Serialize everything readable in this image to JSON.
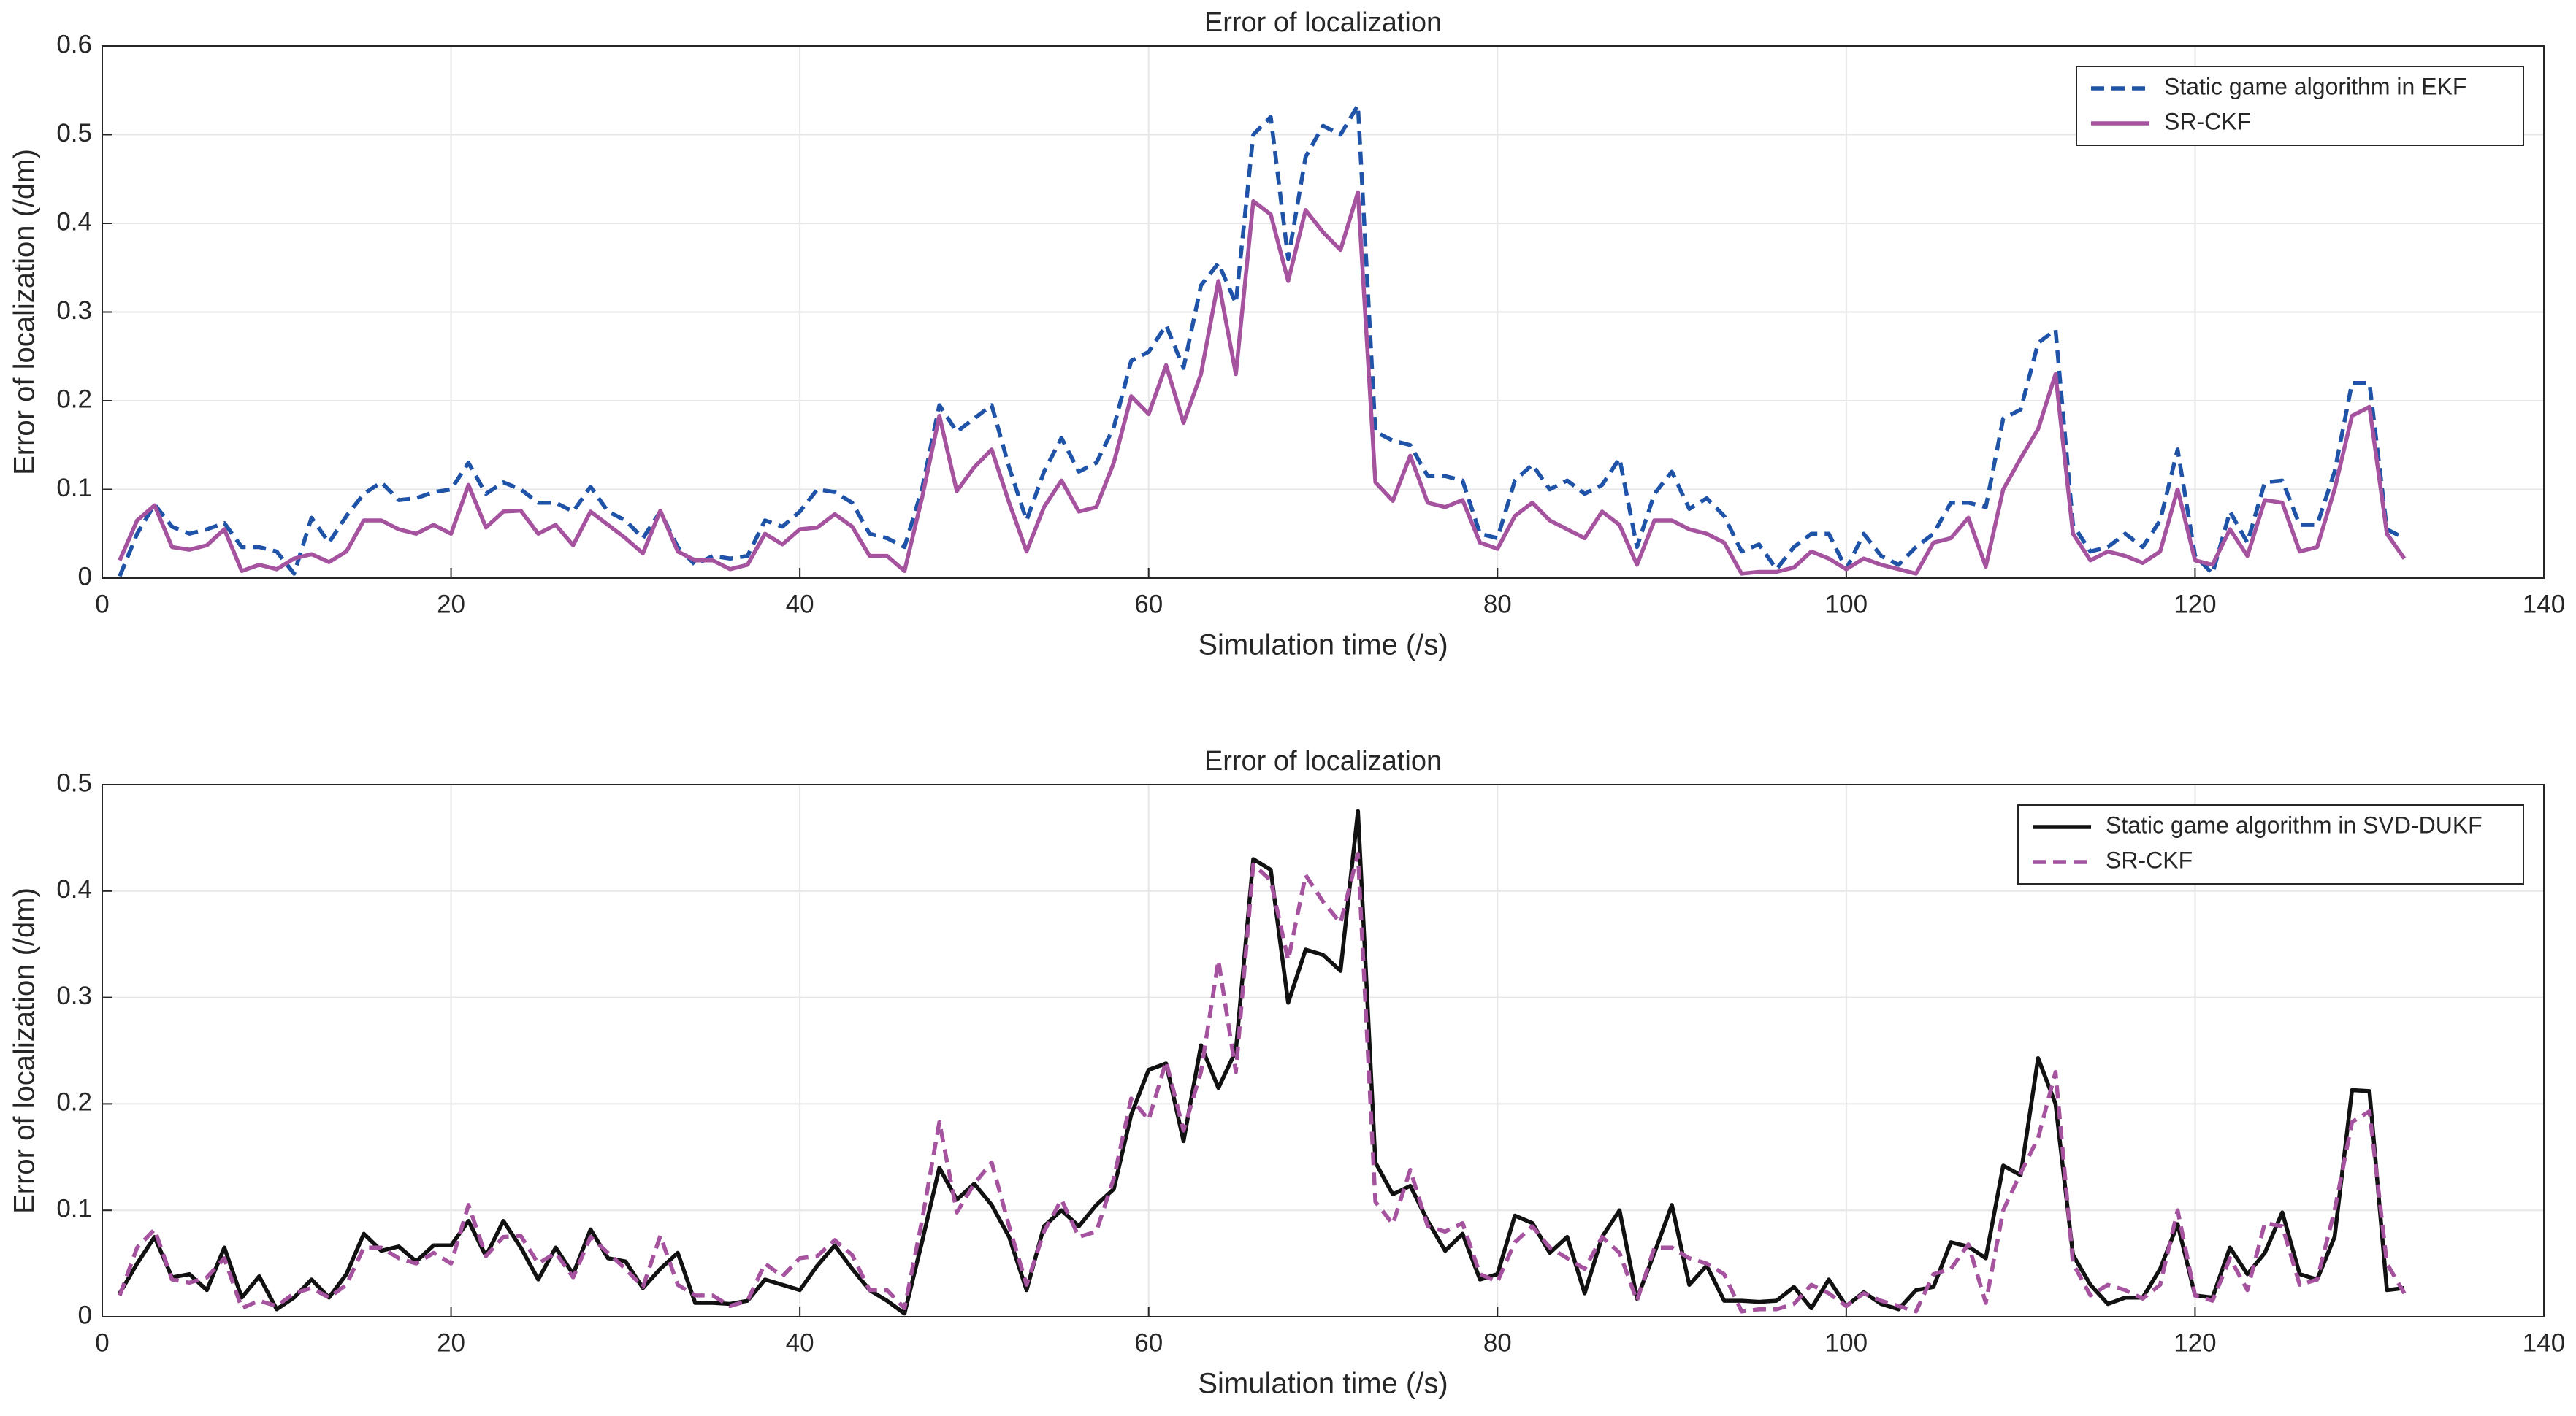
{
  "chart_data": [
    {
      "type": "line",
      "title": "Error of localization",
      "x_label": "Simulation time (/s)",
      "y_label": "Error of localization (/dm)",
      "xlim": [
        0,
        140
      ],
      "ylim": [
        0,
        0.6
      ],
      "xticks": [
        0,
        20,
        40,
        60,
        80,
        100,
        120,
        140
      ],
      "yticks": [
        0,
        0.1,
        0.2,
        0.3,
        0.4,
        0.5,
        0.6
      ],
      "grid": true,
      "legend": "upper-right",
      "x": [
        1,
        2,
        3,
        4,
        5,
        6,
        7,
        8,
        9,
        10,
        11,
        12,
        13,
        14,
        15,
        16,
        17,
        18,
        19,
        20,
        21,
        22,
        23,
        24,
        25,
        26,
        27,
        28,
        29,
        30,
        31,
        32,
        33,
        34,
        35,
        36,
        37,
        38,
        39,
        40,
        41,
        42,
        43,
        44,
        45,
        46,
        47,
        48,
        49,
        50,
        51,
        52,
        53,
        54,
        55,
        56,
        57,
        58,
        59,
        60,
        61,
        62,
        63,
        64,
        65,
        66,
        67,
        68,
        69,
        70,
        71,
        72,
        73,
        74,
        75,
        76,
        77,
        78,
        79,
        80,
        81,
        82,
        83,
        84,
        85,
        86,
        87,
        88,
        89,
        90,
        91,
        92,
        93,
        94,
        95,
        96,
        97,
        98,
        99,
        100,
        101,
        102,
        103,
        104,
        105,
        106,
        107,
        108,
        109,
        110,
        111,
        112,
        113,
        114,
        115,
        116,
        117,
        118,
        119,
        120,
        121,
        122,
        123,
        124,
        125,
        126,
        127,
        128,
        129,
        130,
        131,
        132
      ],
      "series": [
        {
          "name": "Static game algorithm in EKF",
          "color": "#1f53a8",
          "style": "dashed",
          "values": [
            0.002,
            0.05,
            0.083,
            0.058,
            0.05,
            0.055,
            0.062,
            0.035,
            0.035,
            0.03,
            0.005,
            0.068,
            0.04,
            0.07,
            0.095,
            0.108,
            0.088,
            0.09,
            0.097,
            0.1,
            0.13,
            0.095,
            0.108,
            0.1,
            0.085,
            0.085,
            0.075,
            0.103,
            0.075,
            0.065,
            0.045,
            0.075,
            0.035,
            0.015,
            0.025,
            0.022,
            0.025,
            0.065,
            0.058,
            0.075,
            0.1,
            0.097,
            0.085,
            0.05,
            0.045,
            0.035,
            0.1,
            0.195,
            0.165,
            0.18,
            0.195,
            0.125,
            0.065,
            0.12,
            0.158,
            0.12,
            0.13,
            0.17,
            0.245,
            0.255,
            0.285,
            0.237,
            0.33,
            0.355,
            0.31,
            0.5,
            0.52,
            0.36,
            0.475,
            0.51,
            0.5,
            0.533,
            0.165,
            0.155,
            0.15,
            0.115,
            0.115,
            0.11,
            0.05,
            0.045,
            0.11,
            0.128,
            0.1,
            0.11,
            0.095,
            0.105,
            0.135,
            0.035,
            0.095,
            0.12,
            0.078,
            0.09,
            0.07,
            0.03,
            0.038,
            0.01,
            0.035,
            0.05,
            0.05,
            0.01,
            0.05,
            0.025,
            0.015,
            0.035,
            0.05,
            0.085,
            0.085,
            0.08,
            0.18,
            0.19,
            0.265,
            0.28,
            0.06,
            0.03,
            0.035,
            0.05,
            0.035,
            0.065,
            0.145,
            0.025,
            0.005,
            0.075,
            0.04,
            0.108,
            0.11,
            0.06,
            0.06,
            0.12,
            0.22,
            0.22,
            0.055,
            0.045
          ]
        },
        {
          "name": "SR-CKF",
          "color": "#a5529f",
          "style": "solid",
          "values": [
            0.02,
            0.065,
            0.082,
            0.035,
            0.032,
            0.037,
            0.055,
            0.008,
            0.015,
            0.01,
            0.022,
            0.027,
            0.018,
            0.03,
            0.065,
            0.065,
            0.055,
            0.05,
            0.06,
            0.05,
            0.105,
            0.057,
            0.075,
            0.076,
            0.05,
            0.06,
            0.037,
            0.075,
            0.06,
            0.045,
            0.028,
            0.076,
            0.03,
            0.02,
            0.02,
            0.01,
            0.015,
            0.05,
            0.038,
            0.055,
            0.057,
            0.072,
            0.058,
            0.025,
            0.025,
            0.008,
            0.09,
            0.183,
            0.098,
            0.125,
            0.145,
            0.085,
            0.03,
            0.08,
            0.11,
            0.075,
            0.08,
            0.13,
            0.205,
            0.185,
            0.24,
            0.175,
            0.23,
            0.335,
            0.23,
            0.425,
            0.41,
            0.335,
            0.415,
            0.39,
            0.37,
            0.435,
            0.108,
            0.087,
            0.138,
            0.085,
            0.08,
            0.088,
            0.04,
            0.033,
            0.07,
            0.085,
            0.065,
            0.055,
            0.045,
            0.075,
            0.06,
            0.015,
            0.065,
            0.065,
            0.055,
            0.05,
            0.04,
            0.005,
            0.007,
            0.007,
            0.012,
            0.03,
            0.022,
            0.01,
            0.022,
            0.015,
            0.01,
            0.005,
            0.04,
            0.045,
            0.068,
            0.013,
            0.1,
            0.135,
            0.168,
            0.23,
            0.05,
            0.02,
            0.03,
            0.025,
            0.017,
            0.03,
            0.1,
            0.02,
            0.015,
            0.055,
            0.025,
            0.088,
            0.085,
            0.03,
            0.035,
            0.1,
            0.183,
            0.193,
            0.05,
            0.022
          ]
        }
      ]
    },
    {
      "type": "line",
      "title": "Error of localization",
      "x_label": "Simulation time (/s)",
      "y_label": "Error of localization (/dm)",
      "xlim": [
        0,
        140
      ],
      "ylim": [
        0,
        0.5
      ],
      "xticks": [
        0,
        20,
        40,
        60,
        80,
        100,
        120,
        140
      ],
      "yticks": [
        0,
        0.1,
        0.2,
        0.3,
        0.4,
        0.5
      ],
      "grid": true,
      "legend": "upper-right",
      "x": [
        1,
        2,
        3,
        4,
        5,
        6,
        7,
        8,
        9,
        10,
        11,
        12,
        13,
        14,
        15,
        16,
        17,
        18,
        19,
        20,
        21,
        22,
        23,
        24,
        25,
        26,
        27,
        28,
        29,
        30,
        31,
        32,
        33,
        34,
        35,
        36,
        37,
        38,
        39,
        40,
        41,
        42,
        43,
        44,
        45,
        46,
        47,
        48,
        49,
        50,
        51,
        52,
        53,
        54,
        55,
        56,
        57,
        58,
        59,
        60,
        61,
        62,
        63,
        64,
        65,
        66,
        67,
        68,
        69,
        70,
        71,
        72,
        73,
        74,
        75,
        76,
        77,
        78,
        79,
        80,
        81,
        82,
        83,
        84,
        85,
        86,
        87,
        88,
        89,
        90,
        91,
        92,
        93,
        94,
        95,
        96,
        97,
        98,
        99,
        100,
        101,
        102,
        103,
        104,
        105,
        106,
        107,
        108,
        109,
        110,
        111,
        112,
        113,
        114,
        115,
        116,
        117,
        118,
        119,
        120,
        121,
        122,
        123,
        124,
        125,
        126,
        127,
        128,
        129,
        130,
        131,
        132
      ],
      "series": [
        {
          "name": "Static game algorithm in SVD-DUKF",
          "color": "#111111",
          "style": "solid",
          "values": [
            0.022,
            0.05,
            0.075,
            0.037,
            0.04,
            0.025,
            0.065,
            0.018,
            0.038,
            0.007,
            0.018,
            0.035,
            0.018,
            0.04,
            0.078,
            0.062,
            0.066,
            0.052,
            0.067,
            0.067,
            0.09,
            0.057,
            0.09,
            0.065,
            0.035,
            0.065,
            0.04,
            0.082,
            0.055,
            0.052,
            0.027,
            0.045,
            0.06,
            0.013,
            0.013,
            0.012,
            0.015,
            0.035,
            0.03,
            0.025,
            0.048,
            0.067,
            0.045,
            0.025,
            0.015,
            0.003,
            0.07,
            0.14,
            0.11,
            0.125,
            0.105,
            0.075,
            0.025,
            0.085,
            0.1,
            0.085,
            0.105,
            0.12,
            0.19,
            0.232,
            0.238,
            0.165,
            0.255,
            0.215,
            0.25,
            0.43,
            0.42,
            0.295,
            0.345,
            0.34,
            0.325,
            0.475,
            0.145,
            0.115,
            0.123,
            0.09,
            0.062,
            0.078,
            0.035,
            0.04,
            0.095,
            0.088,
            0.06,
            0.075,
            0.022,
            0.075,
            0.1,
            0.017,
            0.06,
            0.105,
            0.03,
            0.048,
            0.015,
            0.015,
            0.014,
            0.015,
            0.028,
            0.008,
            0.035,
            0.01,
            0.023,
            0.012,
            0.007,
            0.025,
            0.028,
            0.07,
            0.066,
            0.055,
            0.142,
            0.133,
            0.243,
            0.2,
            0.058,
            0.03,
            0.012,
            0.018,
            0.018,
            0.045,
            0.087,
            0.02,
            0.018,
            0.065,
            0.04,
            0.06,
            0.098,
            0.04,
            0.035,
            0.075,
            0.213,
            0.212,
            0.025,
            0.027
          ]
        },
        {
          "name": "SR-CKF",
          "color": "#a5529f",
          "style": "dashed",
          "values": [
            0.02,
            0.065,
            0.082,
            0.035,
            0.032,
            0.037,
            0.055,
            0.008,
            0.015,
            0.01,
            0.022,
            0.027,
            0.018,
            0.03,
            0.065,
            0.065,
            0.055,
            0.05,
            0.06,
            0.05,
            0.105,
            0.057,
            0.075,
            0.076,
            0.05,
            0.06,
            0.037,
            0.075,
            0.06,
            0.045,
            0.028,
            0.076,
            0.03,
            0.02,
            0.02,
            0.01,
            0.015,
            0.05,
            0.038,
            0.055,
            0.057,
            0.072,
            0.058,
            0.025,
            0.025,
            0.008,
            0.09,
            0.183,
            0.098,
            0.125,
            0.145,
            0.085,
            0.03,
            0.08,
            0.11,
            0.075,
            0.08,
            0.13,
            0.205,
            0.185,
            0.24,
            0.175,
            0.23,
            0.335,
            0.23,
            0.425,
            0.41,
            0.335,
            0.415,
            0.39,
            0.37,
            0.435,
            0.108,
            0.087,
            0.138,
            0.085,
            0.08,
            0.088,
            0.04,
            0.033,
            0.07,
            0.085,
            0.065,
            0.055,
            0.045,
            0.075,
            0.06,
            0.015,
            0.065,
            0.065,
            0.055,
            0.05,
            0.04,
            0.005,
            0.007,
            0.007,
            0.012,
            0.03,
            0.022,
            0.01,
            0.022,
            0.015,
            0.01,
            0.005,
            0.04,
            0.045,
            0.068,
            0.013,
            0.1,
            0.135,
            0.168,
            0.23,
            0.05,
            0.02,
            0.03,
            0.025,
            0.017,
            0.03,
            0.1,
            0.02,
            0.015,
            0.055,
            0.025,
            0.088,
            0.085,
            0.03,
            0.035,
            0.1,
            0.183,
            0.193,
            0.05,
            0.022
          ]
        }
      ]
    }
  ]
}
